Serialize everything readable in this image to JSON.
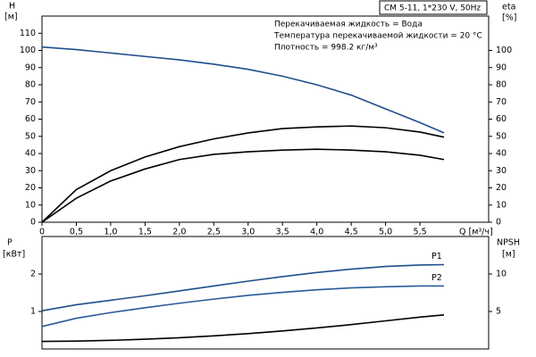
{
  "chart_data": [
    {
      "type": "line",
      "title": "CM 5-11, 1*230 V, 50Hz",
      "annotations": [
        "Перекачиваемая жидкость = Вода",
        "Температура перекачиваемой жидкости = 20 °C",
        "Плотность = 998.2 кг/м³"
      ],
      "x_label": "Q [м³/ч]",
      "y_label": "H",
      "y_unit": "[м]",
      "y2_label": "eta",
      "y2_unit": "[%]",
      "x": [
        0,
        0.5,
        1.0,
        1.5,
        2.0,
        2.5,
        3.0,
        3.5,
        4.0,
        4.5,
        5.0,
        5.5,
        5.85
      ],
      "xlim": [
        0,
        6.5
      ],
      "xticks": [
        0,
        {
          "value": 0.5,
          "label": "0,5"
        },
        {
          "value": 1.0,
          "label": "1,0"
        },
        {
          "value": 1.5,
          "label": "1,5"
        },
        {
          "value": 2.0,
          "label": "2,0"
        },
        {
          "value": 2.5,
          "label": "2,5"
        },
        {
          "value": 3.0,
          "label": "3,0"
        },
        {
          "value": 3.5,
          "label": "3,5"
        },
        {
          "value": 4.0,
          "label": "4,0"
        },
        {
          "value": 4.5,
          "label": "4,5"
        },
        {
          "value": 5.0,
          "label": "5,0"
        },
        {
          "value": 5.5,
          "label": "5,5"
        }
      ],
      "ylim": [
        0,
        120
      ],
      "yticks": [
        0,
        10,
        20,
        30,
        40,
        50,
        60,
        70,
        80,
        90,
        100,
        110
      ],
      "y2lim": [
        0,
        120
      ],
      "y2ticks": [
        0,
        10,
        20,
        30,
        40,
        50,
        60,
        70,
        80,
        90,
        100
      ],
      "series": [
        {
          "color": "#1f4e8c",
          "values": [
            102,
            100.5,
            98.5,
            96.5,
            94.5,
            92,
            89,
            85,
            80,
            74,
            66,
            58,
            52
          ]
        },
        {
          "color": "#000000",
          "axis": "y2",
          "values": [
            0,
            19,
            30,
            38,
            44,
            48.5,
            52,
            54.5,
            55.5,
            56,
            55,
            52.5,
            49.5
          ]
        },
        {
          "color": "#000000",
          "axis": "y2",
          "values": [
            0,
            14,
            24,
            31,
            36.5,
            39.5,
            41,
            42,
            42.5,
            42,
            41,
            39,
            36.5
          ]
        }
      ]
    },
    {
      "type": "line",
      "y_label": "P",
      "y_unit": "[кВт]",
      "y2_label": "NPSH",
      "y2_unit": "[м]",
      "x": [
        0,
        0.5,
        1.0,
        1.5,
        2.0,
        2.5,
        3.0,
        3.5,
        4.0,
        4.5,
        5.0,
        5.5,
        5.85
      ],
      "xlim": [
        0,
        6.5
      ],
      "ylim": [
        0,
        3
      ],
      "yticks": [
        1,
        2
      ],
      "y2lim": [
        0,
        15
      ],
      "y2ticks": [
        5,
        10
      ],
      "series": [
        {
          "name": "P1",
          "color": "#1f4e8c",
          "values": [
            1.02,
            1.18,
            1.3,
            1.42,
            1.55,
            1.68,
            1.81,
            1.93,
            2.04,
            2.13,
            2.2,
            2.24,
            2.25
          ]
        },
        {
          "name": "P2",
          "color": "#2a5a9a",
          "values": [
            0.6,
            0.82,
            0.97,
            1.1,
            1.22,
            1.33,
            1.43,
            1.51,
            1.58,
            1.63,
            1.66,
            1.68,
            1.68
          ]
        },
        {
          "color": "#000000",
          "axis": "y2",
          "values": [
            1.0,
            1.05,
            1.15,
            1.3,
            1.5,
            1.75,
            2.05,
            2.4,
            2.8,
            3.25,
            3.75,
            4.25,
            4.55
          ]
        }
      ]
    }
  ]
}
